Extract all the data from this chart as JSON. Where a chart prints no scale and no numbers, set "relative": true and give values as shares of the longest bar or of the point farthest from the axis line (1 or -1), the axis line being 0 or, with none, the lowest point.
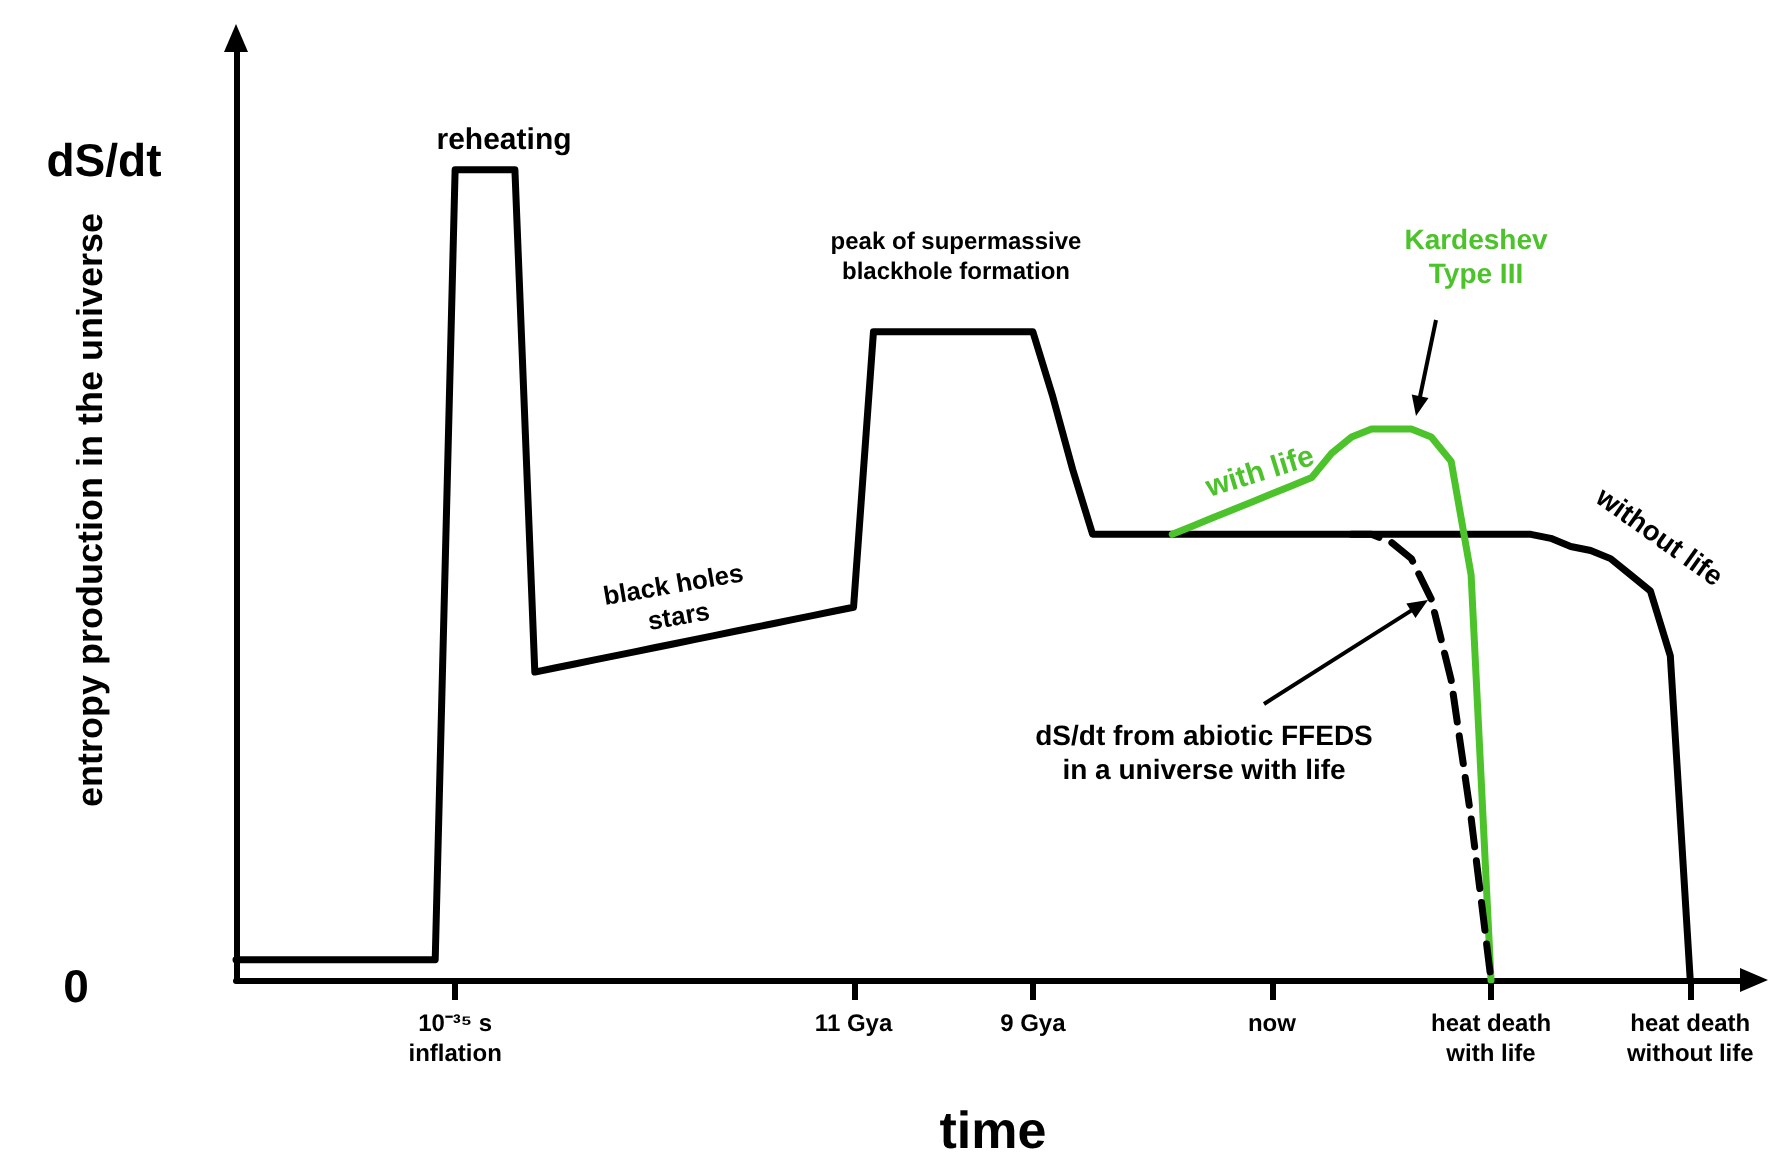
{
  "chart_data": {
    "type": "line",
    "relative": true,
    "xlabel": "time",
    "ylabel": "entropy production in the universe",
    "categories": [
      null,
      null,
      null,
      null,
      null,
      null,
      null,
      null,
      null,
      null,
      null,
      "10⁻³⁵ s\ninflation",
      null,
      null,
      null,
      null,
      null,
      null,
      null,
      null,
      null,
      null,
      null,
      null,
      null,
      null,
      null,
      null,
      null,
      null,
      null,
      "11 Gya",
      null,
      null,
      null,
      null,
      null,
      null,
      null,
      null,
      "9 Gya",
      null,
      null,
      null,
      null,
      null,
      null,
      null,
      null,
      null,
      null,
      null,
      "now",
      null,
      null,
      null,
      null,
      null,
      null,
      null,
      null,
      null,
      null,
      "heat death\nwith life",
      null,
      null,
      null,
      null,
      null,
      null,
      null,
      null,
      null,
      "heat death\nwithout life",
      null,
      null,
      null
    ],
    "series": [
      {
        "color": "#000000",
        "values": [
          0.025,
          0.025,
          0.025,
          0.025,
          0.025,
          0.025,
          0.025,
          0.025,
          0.025,
          0.025,
          0.025,
          1.0,
          1.0,
          1.0,
          1.0,
          0.38,
          0.385,
          0.39,
          0.395,
          0.4,
          0.405,
          0.41,
          0.415,
          0.42,
          0.425,
          0.43,
          0.435,
          0.44,
          0.445,
          0.45,
          0.455,
          0.46,
          0.8,
          0.8,
          0.8,
          0.8,
          0.8,
          0.8,
          0.8,
          0.8,
          0.8,
          0.72,
          0.63,
          0.55,
          0.55,
          0.55,
          0.55,
          0.55,
          0.55,
          0.55,
          0.55,
          0.55,
          0.55,
          0.55,
          0.55,
          0.55,
          0.55,
          0.55,
          0.55,
          0.55,
          0.55,
          0.55,
          0.55,
          0.55,
          0.55,
          0.55,
          0.545,
          0.535,
          0.53,
          0.52,
          0.5,
          0.48,
          0.4,
          0,
          null,
          null,
          null
        ]
      },
      {
        "color": "#4cc22b",
        "values": [
          null,
          null,
          null,
          null,
          null,
          null,
          null,
          null,
          null,
          null,
          null,
          null,
          null,
          null,
          null,
          null,
          null,
          null,
          null,
          null,
          null,
          null,
          null,
          null,
          null,
          null,
          null,
          null,
          null,
          null,
          null,
          null,
          null,
          null,
          null,
          null,
          null,
          null,
          null,
          null,
          null,
          null,
          null,
          null,
          null,
          null,
          null,
          0.55,
          0.56,
          0.57,
          0.58,
          0.59,
          0.6,
          0.61,
          0.62,
          0.65,
          0.67,
          0.68,
          0.68,
          0.68,
          0.67,
          0.64,
          0.5,
          0,
          null,
          null,
          null,
          null,
          null,
          null,
          null,
          null,
          null,
          null,
          null,
          null,
          null
        ]
      },
      {
        "color": "#000000",
        "line_style": "dashed",
        "values": [
          null,
          null,
          null,
          null,
          null,
          null,
          null,
          null,
          null,
          null,
          null,
          null,
          null,
          null,
          null,
          null,
          null,
          null,
          null,
          null,
          null,
          null,
          null,
          null,
          null,
          null,
          null,
          null,
          null,
          null,
          null,
          null,
          null,
          null,
          null,
          null,
          null,
          null,
          null,
          null,
          null,
          null,
          null,
          null,
          null,
          null,
          null,
          null,
          null,
          null,
          null,
          null,
          null,
          null,
          null,
          null,
          0.55,
          0.55,
          0.54,
          0.52,
          0.47,
          0.37,
          0.2,
          0,
          null,
          null,
          null,
          null,
          null,
          null,
          null,
          null,
          null,
          null,
          null,
          null,
          null
        ]
      }
    ],
    "annotations": [
      "reheating",
      "black holes\nstars",
      "peak of supermassive\nblackhole formation",
      "Kardeshev\nType III",
      "with life",
      "without life",
      "dS/dt from abiotic FFEDS\nin a universe with life",
      "dS/dt",
      "0"
    ]
  }
}
